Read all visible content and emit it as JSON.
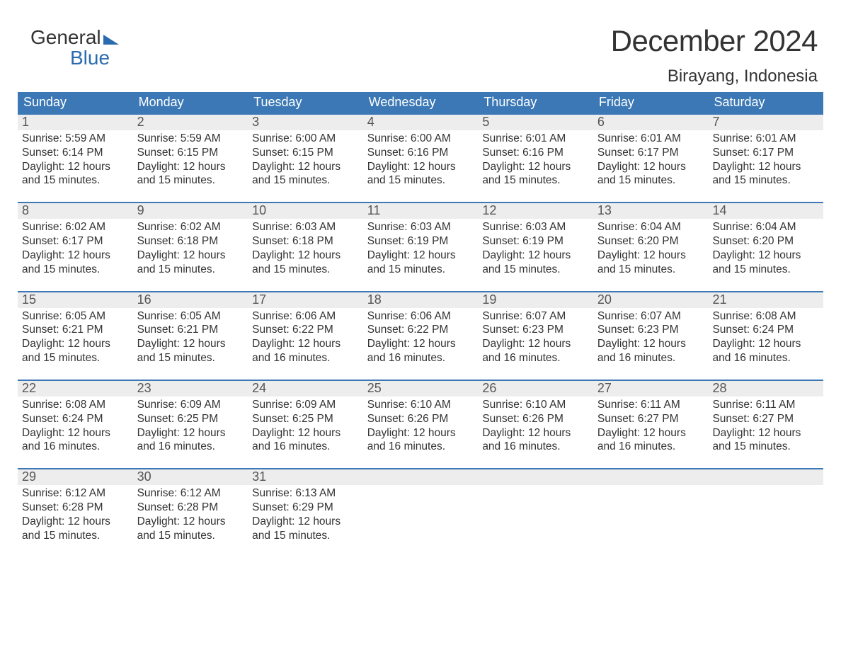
{
  "logo": {
    "line1": "General",
    "line2": "Blue"
  },
  "title": "December 2024",
  "location": "Birayang, Indonesia",
  "colors": {
    "header_bg": "#3b78b5",
    "header_text": "#ffffff",
    "daynum_bg": "#ededed",
    "daynum_border": "#3b78b5",
    "body_text": "#333333",
    "logo_accent": "#2a6bb0",
    "page_bg": "#ffffff"
  },
  "fonts": {
    "title_pt": 42,
    "location_pt": 24,
    "dayhead_pt": 18,
    "daynum_pt": 18,
    "body_pt": 15.5
  },
  "day_headers": [
    "Sunday",
    "Monday",
    "Tuesday",
    "Wednesday",
    "Thursday",
    "Friday",
    "Saturday"
  ],
  "weeks": [
    [
      {
        "n": "1",
        "sr": "Sunrise: 5:59 AM",
        "ss": "Sunset: 6:14 PM",
        "d1": "Daylight: 12 hours",
        "d2": "and 15 minutes."
      },
      {
        "n": "2",
        "sr": "Sunrise: 5:59 AM",
        "ss": "Sunset: 6:15 PM",
        "d1": "Daylight: 12 hours",
        "d2": "and 15 minutes."
      },
      {
        "n": "3",
        "sr": "Sunrise: 6:00 AM",
        "ss": "Sunset: 6:15 PM",
        "d1": "Daylight: 12 hours",
        "d2": "and 15 minutes."
      },
      {
        "n": "4",
        "sr": "Sunrise: 6:00 AM",
        "ss": "Sunset: 6:16 PM",
        "d1": "Daylight: 12 hours",
        "d2": "and 15 minutes."
      },
      {
        "n": "5",
        "sr": "Sunrise: 6:01 AM",
        "ss": "Sunset: 6:16 PM",
        "d1": "Daylight: 12 hours",
        "d2": "and 15 minutes."
      },
      {
        "n": "6",
        "sr": "Sunrise: 6:01 AM",
        "ss": "Sunset: 6:17 PM",
        "d1": "Daylight: 12 hours",
        "d2": "and 15 minutes."
      },
      {
        "n": "7",
        "sr": "Sunrise: 6:01 AM",
        "ss": "Sunset: 6:17 PM",
        "d1": "Daylight: 12 hours",
        "d2": "and 15 minutes."
      }
    ],
    [
      {
        "n": "8",
        "sr": "Sunrise: 6:02 AM",
        "ss": "Sunset: 6:17 PM",
        "d1": "Daylight: 12 hours",
        "d2": "and 15 minutes."
      },
      {
        "n": "9",
        "sr": "Sunrise: 6:02 AM",
        "ss": "Sunset: 6:18 PM",
        "d1": "Daylight: 12 hours",
        "d2": "and 15 minutes."
      },
      {
        "n": "10",
        "sr": "Sunrise: 6:03 AM",
        "ss": "Sunset: 6:18 PM",
        "d1": "Daylight: 12 hours",
        "d2": "and 15 minutes."
      },
      {
        "n": "11",
        "sr": "Sunrise: 6:03 AM",
        "ss": "Sunset: 6:19 PM",
        "d1": "Daylight: 12 hours",
        "d2": "and 15 minutes."
      },
      {
        "n": "12",
        "sr": "Sunrise: 6:03 AM",
        "ss": "Sunset: 6:19 PM",
        "d1": "Daylight: 12 hours",
        "d2": "and 15 minutes."
      },
      {
        "n": "13",
        "sr": "Sunrise: 6:04 AM",
        "ss": "Sunset: 6:20 PM",
        "d1": "Daylight: 12 hours",
        "d2": "and 15 minutes."
      },
      {
        "n": "14",
        "sr": "Sunrise: 6:04 AM",
        "ss": "Sunset: 6:20 PM",
        "d1": "Daylight: 12 hours",
        "d2": "and 15 minutes."
      }
    ],
    [
      {
        "n": "15",
        "sr": "Sunrise: 6:05 AM",
        "ss": "Sunset: 6:21 PM",
        "d1": "Daylight: 12 hours",
        "d2": "and 15 minutes."
      },
      {
        "n": "16",
        "sr": "Sunrise: 6:05 AM",
        "ss": "Sunset: 6:21 PM",
        "d1": "Daylight: 12 hours",
        "d2": "and 15 minutes."
      },
      {
        "n": "17",
        "sr": "Sunrise: 6:06 AM",
        "ss": "Sunset: 6:22 PM",
        "d1": "Daylight: 12 hours",
        "d2": "and 16 minutes."
      },
      {
        "n": "18",
        "sr": "Sunrise: 6:06 AM",
        "ss": "Sunset: 6:22 PM",
        "d1": "Daylight: 12 hours",
        "d2": "and 16 minutes."
      },
      {
        "n": "19",
        "sr": "Sunrise: 6:07 AM",
        "ss": "Sunset: 6:23 PM",
        "d1": "Daylight: 12 hours",
        "d2": "and 16 minutes."
      },
      {
        "n": "20",
        "sr": "Sunrise: 6:07 AM",
        "ss": "Sunset: 6:23 PM",
        "d1": "Daylight: 12 hours",
        "d2": "and 16 minutes."
      },
      {
        "n": "21",
        "sr": "Sunrise: 6:08 AM",
        "ss": "Sunset: 6:24 PM",
        "d1": "Daylight: 12 hours",
        "d2": "and 16 minutes."
      }
    ],
    [
      {
        "n": "22",
        "sr": "Sunrise: 6:08 AM",
        "ss": "Sunset: 6:24 PM",
        "d1": "Daylight: 12 hours",
        "d2": "and 16 minutes."
      },
      {
        "n": "23",
        "sr": "Sunrise: 6:09 AM",
        "ss": "Sunset: 6:25 PM",
        "d1": "Daylight: 12 hours",
        "d2": "and 16 minutes."
      },
      {
        "n": "24",
        "sr": "Sunrise: 6:09 AM",
        "ss": "Sunset: 6:25 PM",
        "d1": "Daylight: 12 hours",
        "d2": "and 16 minutes."
      },
      {
        "n": "25",
        "sr": "Sunrise: 6:10 AM",
        "ss": "Sunset: 6:26 PM",
        "d1": "Daylight: 12 hours",
        "d2": "and 16 minutes."
      },
      {
        "n": "26",
        "sr": "Sunrise: 6:10 AM",
        "ss": "Sunset: 6:26 PM",
        "d1": "Daylight: 12 hours",
        "d2": "and 16 minutes."
      },
      {
        "n": "27",
        "sr": "Sunrise: 6:11 AM",
        "ss": "Sunset: 6:27 PM",
        "d1": "Daylight: 12 hours",
        "d2": "and 16 minutes."
      },
      {
        "n": "28",
        "sr": "Sunrise: 6:11 AM",
        "ss": "Sunset: 6:27 PM",
        "d1": "Daylight: 12 hours",
        "d2": "and 15 minutes."
      }
    ],
    [
      {
        "n": "29",
        "sr": "Sunrise: 6:12 AM",
        "ss": "Sunset: 6:28 PM",
        "d1": "Daylight: 12 hours",
        "d2": "and 15 minutes."
      },
      {
        "n": "30",
        "sr": "Sunrise: 6:12 AM",
        "ss": "Sunset: 6:28 PM",
        "d1": "Daylight: 12 hours",
        "d2": "and 15 minutes."
      },
      {
        "n": "31",
        "sr": "Sunrise: 6:13 AM",
        "ss": "Sunset: 6:29 PM",
        "d1": "Daylight: 12 hours",
        "d2": "and 15 minutes."
      },
      {
        "empty": true
      },
      {
        "empty": true
      },
      {
        "empty": true
      },
      {
        "empty": true
      }
    ]
  ]
}
